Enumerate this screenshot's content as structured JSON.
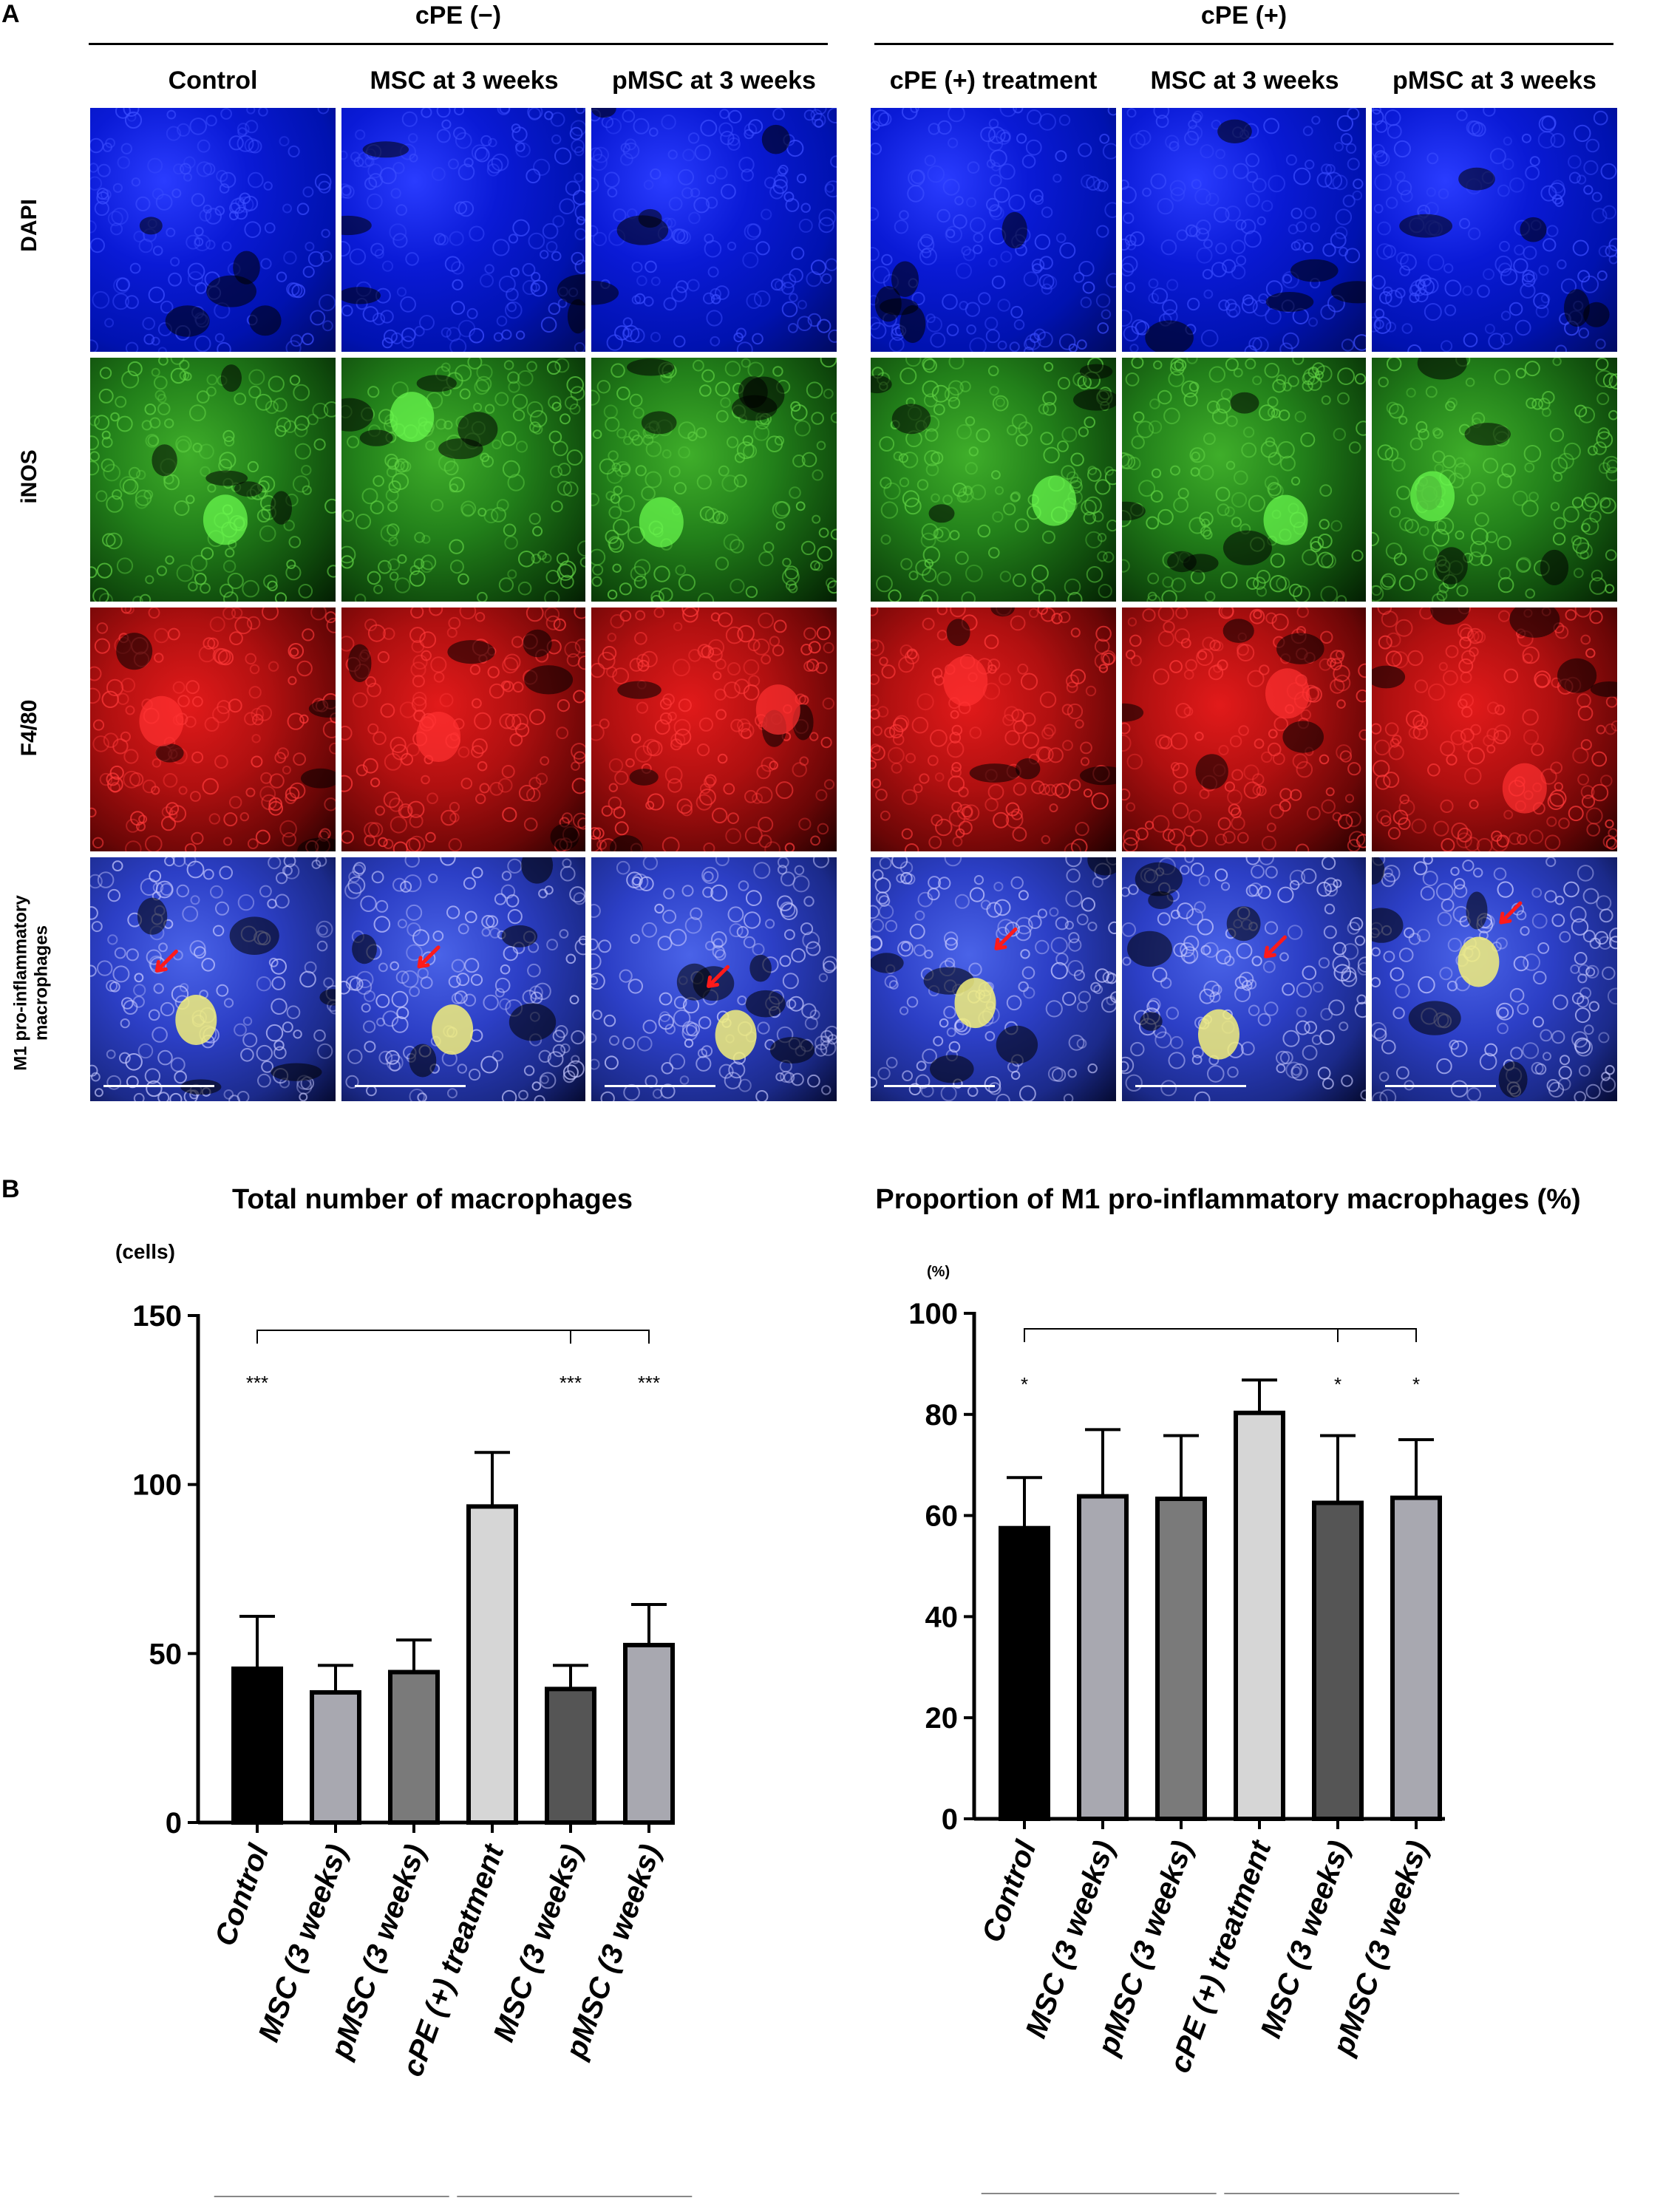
{
  "panel_a": {
    "letter": "A",
    "groups": [
      {
        "label": "cPE (−)",
        "columns": [
          "Control",
          "MSC at 3 weeks",
          "pMSC at 3 weeks"
        ]
      },
      {
        "label": "cPE (+)",
        "columns": [
          "cPE (+) treatment",
          "MSC at 3 weeks",
          "pMSC at 3 weeks"
        ]
      }
    ],
    "rows": [
      "DAPI",
      "iNOS",
      "F4/80"
    ],
    "merge_row_label": [
      "M1 pro-inflammatory",
      "macrophages"
    ],
    "colors": {
      "dapi": "#0012b0",
      "inos": "#22801a",
      "f480": "#b01010",
      "merge": "#2c3fc6",
      "arrow": "#ff1a1a"
    }
  },
  "panel_b": {
    "letter": "B"
  },
  "chart_data": [
    {
      "type": "bar",
      "title": "Total number of macrophages",
      "ylabel": "(cells)",
      "ylim": [
        0,
        150
      ],
      "yticks": [
        "0",
        "50",
        "100",
        "150"
      ],
      "categories": [
        "Control",
        "MSC (3 weeks)",
        "pMSC (3 weeks)",
        "cPE (+) treatment",
        "MSC (3 weeks)",
        "pMSC (3 weeks)"
      ],
      "values": [
        45.5,
        38.5,
        44.5,
        93.5,
        39.5,
        52.5
      ],
      "errors": [
        15.5,
        8,
        9.5,
        16,
        7,
        12
      ],
      "bar_colors": [
        "#000000",
        "#a8a8b0",
        "#7a7a7a",
        "#d6d6d6",
        "#555555",
        "#a8a8b0"
      ],
      "significance": [
        "***",
        "",
        "",
        "",
        "***",
        "***"
      ],
      "group_labels": [
        "cPE (-)",
        "cPE (+)"
      ]
    },
    {
      "type": "bar",
      "title": "Proportion of M1 pro-inflammatory macrophages (%)",
      "ylabel": "(%)",
      "ylim": [
        0,
        100
      ],
      "yticks": [
        "0",
        "20",
        "40",
        "60",
        "80",
        "100"
      ],
      "categories": [
        "Control",
        "MSC (3 weeks)",
        "pMSC (3 weeks)",
        "cPE (+) treatment",
        "MSC (3 weeks)",
        "pMSC (3 weeks)"
      ],
      "values": [
        57.5,
        63.8,
        63.3,
        80.3,
        62.5,
        63.5
      ],
      "errors": [
        10,
        13.2,
        12.5,
        6.5,
        13.3,
        11.5
      ],
      "bar_colors": [
        "#000000",
        "#a8a8b0",
        "#7a7a7a",
        "#d6d6d6",
        "#555555",
        "#a8a8b0"
      ],
      "significance": [
        "*",
        "",
        "",
        "",
        "*",
        "*"
      ],
      "group_labels": [
        "cPE (-)",
        "cPE (+)"
      ]
    }
  ]
}
